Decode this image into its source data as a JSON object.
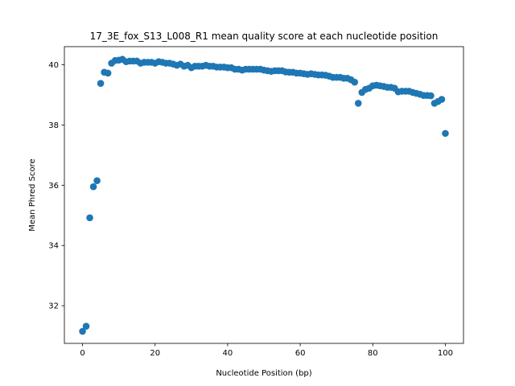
{
  "chart_data": {
    "type": "scatter",
    "title": "17_3E_fox_S13_L008_R1 mean quality score at each nucleotide position",
    "xlabel": "Nucleotide Position (bp)",
    "ylabel": "Mean Phred Score",
    "xlim": [
      -5,
      105
    ],
    "ylim": [
      30.75,
      40.6
    ],
    "xticks": [
      0,
      20,
      40,
      60,
      80,
      100
    ],
    "yticks": [
      32,
      34,
      36,
      38,
      40
    ],
    "grid": false,
    "marker_color": "#1f77b4",
    "x": [
      0,
      1,
      2,
      3,
      4,
      5,
      6,
      7,
      8,
      9,
      10,
      11,
      12,
      13,
      14,
      15,
      16,
      17,
      18,
      19,
      20,
      21,
      22,
      23,
      24,
      25,
      26,
      27,
      28,
      29,
      30,
      31,
      32,
      33,
      34,
      35,
      36,
      37,
      38,
      39,
      40,
      41,
      42,
      43,
      44,
      45,
      46,
      47,
      48,
      49,
      50,
      51,
      52,
      53,
      54,
      55,
      56,
      57,
      58,
      59,
      60,
      61,
      62,
      63,
      64,
      65,
      66,
      67,
      68,
      69,
      70,
      71,
      72,
      73,
      74,
      75,
      76,
      77,
      78,
      79,
      80,
      81,
      82,
      83,
      84,
      85,
      86,
      87,
      88,
      89,
      90,
      91,
      92,
      93,
      94,
      95,
      96,
      97,
      98,
      99,
      100
    ],
    "y": [
      31.15,
      31.32,
      34.92,
      35.95,
      36.15,
      39.38,
      39.75,
      39.72,
      40.05,
      40.14,
      40.15,
      40.18,
      40.1,
      40.12,
      40.12,
      40.12,
      40.05,
      40.08,
      40.08,
      40.08,
      40.05,
      40.1,
      40.08,
      40.05,
      40.05,
      40.02,
      39.98,
      40.02,
      39.95,
      39.98,
      39.9,
      39.95,
      39.95,
      39.95,
      39.98,
      39.95,
      39.95,
      39.92,
      39.92,
      39.92,
      39.9,
      39.9,
      39.85,
      39.85,
      39.82,
      39.85,
      39.85,
      39.85,
      39.85,
      39.85,
      39.82,
      39.8,
      39.78,
      39.8,
      39.8,
      39.8,
      39.76,
      39.75,
      39.75,
      39.72,
      39.72,
      39.7,
      39.68,
      39.7,
      39.68,
      39.66,
      39.66,
      39.65,
      39.62,
      39.58,
      39.58,
      39.58,
      39.55,
      39.55,
      39.5,
      39.42,
      38.72,
      39.08,
      39.18,
      39.22,
      39.3,
      39.32,
      39.3,
      39.28,
      39.25,
      39.25,
      39.22,
      39.1,
      39.12,
      39.12,
      39.12,
      39.08,
      39.05,
      39.02,
      38.98,
      38.98,
      38.97,
      38.72,
      38.78,
      38.85,
      37.72
    ]
  }
}
